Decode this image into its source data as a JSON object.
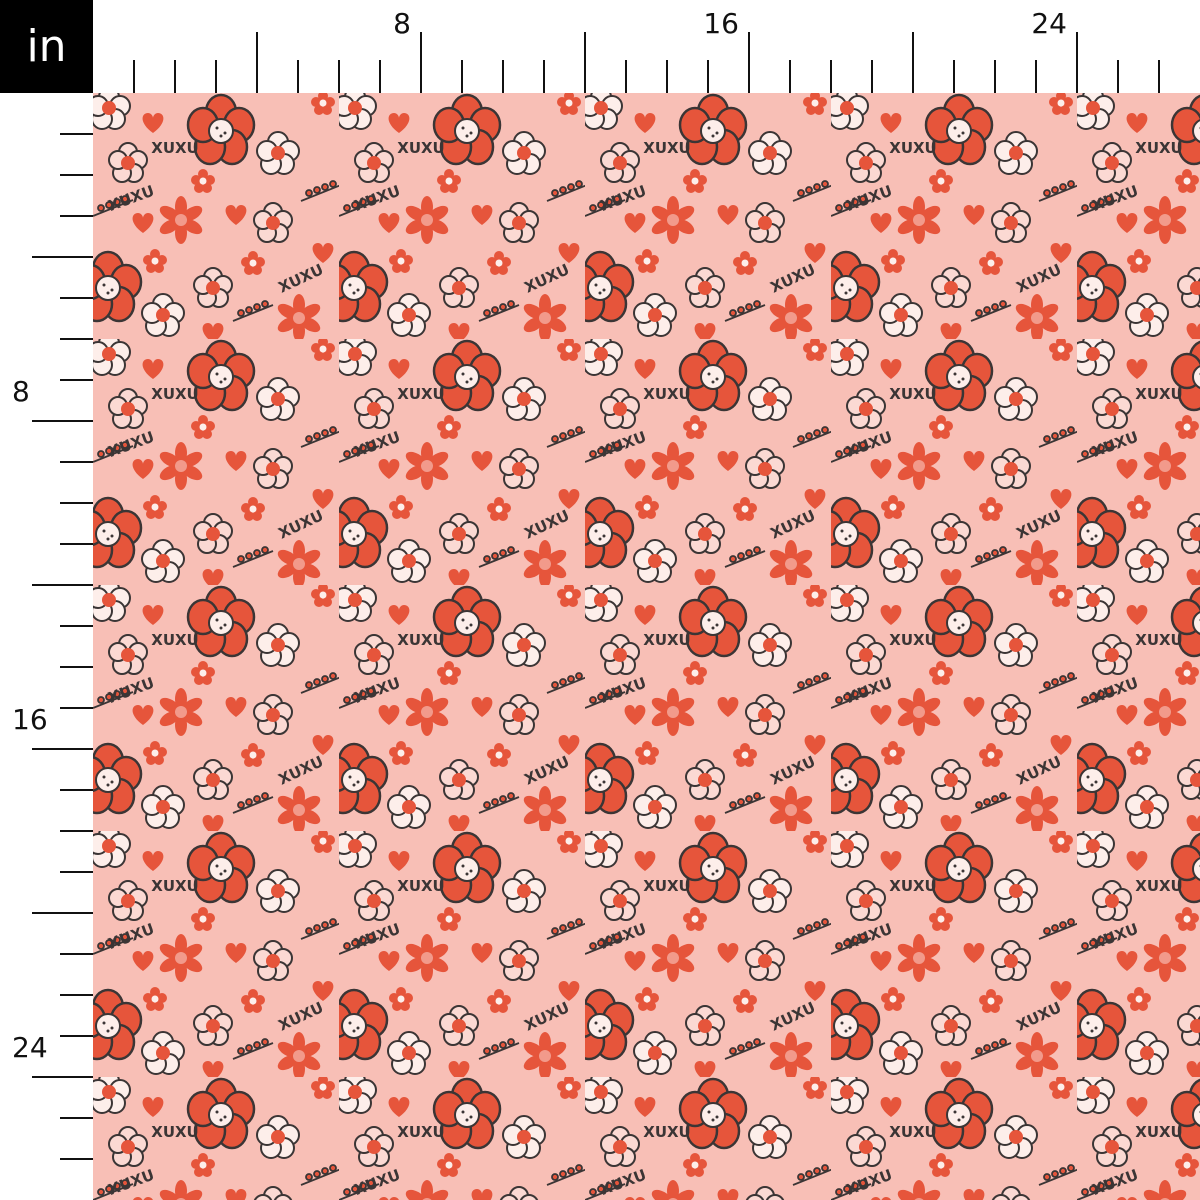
{
  "unit_label": "in",
  "ruler": {
    "top_labels": [
      "8",
      "16",
      "24"
    ],
    "left_labels": [
      "8",
      "16",
      "24"
    ],
    "units_per_minor_tick": 1,
    "major_tick_every": 4
  },
  "fabric": {
    "motif_text": "XUXU",
    "colors": {
      "background": "#f8bfb6",
      "accent_red": "#e6553b",
      "light_pink": "#fbd9d3",
      "outline": "#3b3535",
      "cream": "#fdeeea"
    }
  }
}
